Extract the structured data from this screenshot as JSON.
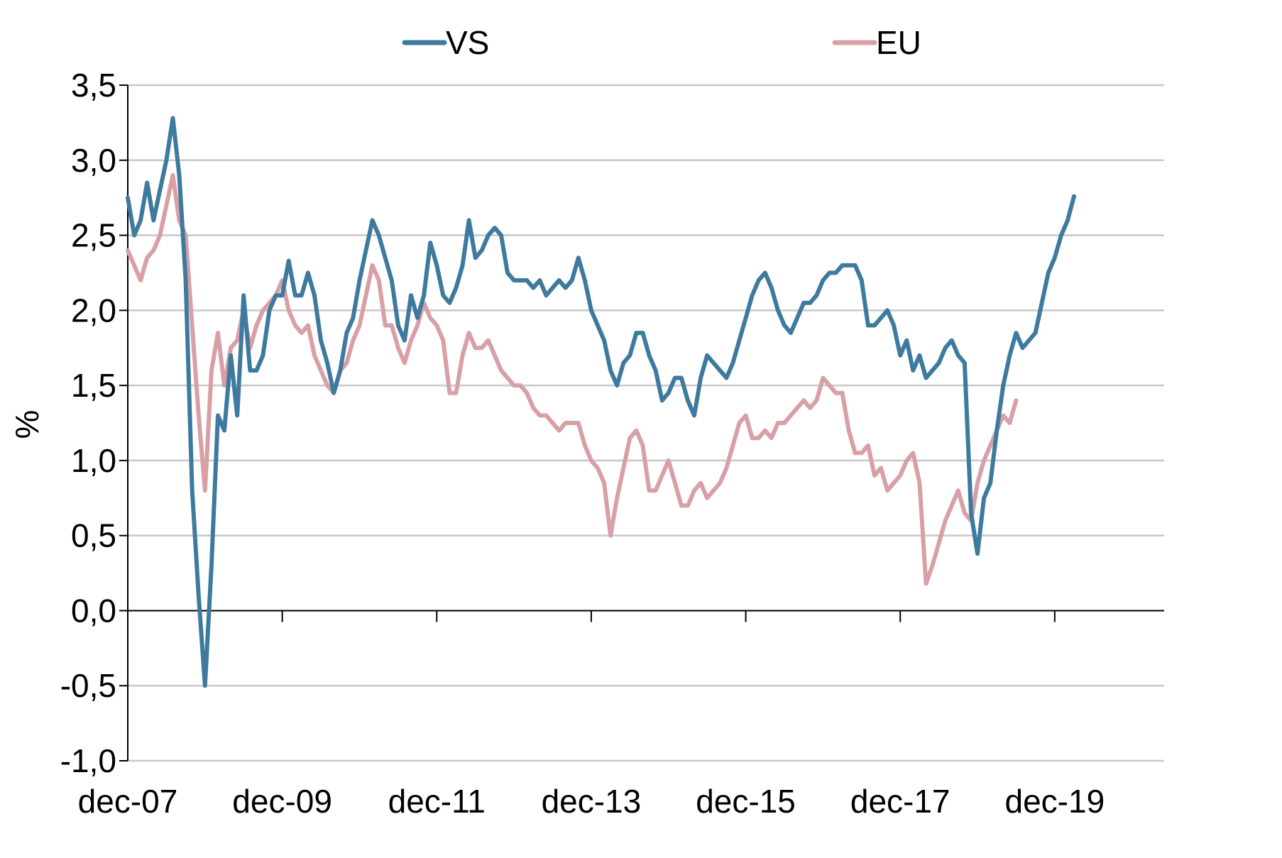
{
  "chart_data": {
    "type": "line",
    "title": "",
    "xlabel": "",
    "ylabel": "%",
    "ylim": [
      -1.0,
      3.5
    ],
    "xlim": [
      "2007-12",
      "2021-05"
    ],
    "grid": true,
    "legend": "top-center",
    "y_ticks": [
      "3,5",
      "3,0",
      "2,5",
      "2,0",
      "1,5",
      "1,0",
      "0,5",
      "0,0",
      "-0,5",
      "-1,0"
    ],
    "y_tick_values": [
      3.5,
      3.0,
      2.5,
      2.0,
      1.5,
      1.0,
      0.5,
      0.0,
      -0.5,
      -1.0
    ],
    "x_ticks": [
      "dec-07",
      "dec-09",
      "dec-11",
      "dec-13",
      "dec-15",
      "dec-17",
      "dec-19"
    ],
    "x_tick_values": [
      "2007-12",
      "2009-12",
      "2011-12",
      "2013-12",
      "2015-12",
      "2017-12",
      "2019-12"
    ],
    "series": [
      {
        "name": "VS",
        "color": "#3d7a9e",
        "points": [
          [
            "2007-12",
            2.75
          ],
          [
            "2008-01",
            2.5
          ],
          [
            "2008-02",
            2.6
          ],
          [
            "2008-03",
            2.85
          ],
          [
            "2008-04",
            2.6
          ],
          [
            "2008-05",
            2.8
          ],
          [
            "2008-06",
            3.0
          ],
          [
            "2008-07",
            3.28
          ],
          [
            "2008-08",
            2.9
          ],
          [
            "2008-09",
            2.2
          ],
          [
            "2008-10",
            0.8
          ],
          [
            "2008-11",
            0.1
          ],
          [
            "2008-12",
            -0.5
          ],
          [
            "2009-01",
            0.3
          ],
          [
            "2009-02",
            1.3
          ],
          [
            "2009-03",
            1.2
          ],
          [
            "2009-04",
            1.7
          ],
          [
            "2009-05",
            1.3
          ],
          [
            "2009-06",
            2.1
          ],
          [
            "2009-07",
            1.6
          ],
          [
            "2009-08",
            1.6
          ],
          [
            "2009-09",
            1.7
          ],
          [
            "2009-10",
            2.0
          ],
          [
            "2009-11",
            2.1
          ],
          [
            "2009-12",
            2.1
          ],
          [
            "2010-01",
            2.33
          ],
          [
            "2010-02",
            2.1
          ],
          [
            "2010-03",
            2.1
          ],
          [
            "2010-04",
            2.25
          ],
          [
            "2010-05",
            2.1
          ],
          [
            "2010-06",
            1.8
          ],
          [
            "2010-07",
            1.65
          ],
          [
            "2010-08",
            1.45
          ],
          [
            "2010-09",
            1.6
          ],
          [
            "2010-10",
            1.85
          ],
          [
            "2010-11",
            1.95
          ],
          [
            "2010-12",
            2.2
          ],
          [
            "2011-01",
            2.4
          ],
          [
            "2011-02",
            2.6
          ],
          [
            "2011-03",
            2.5
          ],
          [
            "2011-04",
            2.35
          ],
          [
            "2011-05",
            2.2
          ],
          [
            "2011-06",
            1.9
          ],
          [
            "2011-07",
            1.8
          ],
          [
            "2011-08",
            2.1
          ],
          [
            "2011-09",
            1.95
          ],
          [
            "2011-10",
            2.1
          ],
          [
            "2011-11",
            2.45
          ],
          [
            "2011-12",
            2.3
          ],
          [
            "2012-01",
            2.1
          ],
          [
            "2012-02",
            2.05
          ],
          [
            "2012-03",
            2.15
          ],
          [
            "2012-04",
            2.3
          ],
          [
            "2012-05",
            2.6
          ],
          [
            "2012-06",
            2.35
          ],
          [
            "2012-07",
            2.4
          ],
          [
            "2012-08",
            2.5
          ],
          [
            "2012-09",
            2.55
          ],
          [
            "2012-10",
            2.5
          ],
          [
            "2012-11",
            2.25
          ],
          [
            "2012-12",
            2.2
          ],
          [
            "2013-01",
            2.2
          ],
          [
            "2013-02",
            2.2
          ],
          [
            "2013-03",
            2.15
          ],
          [
            "2013-04",
            2.2
          ],
          [
            "2013-05",
            2.1
          ],
          [
            "2013-06",
            2.15
          ],
          [
            "2013-07",
            2.2
          ],
          [
            "2013-08",
            2.15
          ],
          [
            "2013-09",
            2.2
          ],
          [
            "2013-10",
            2.35
          ],
          [
            "2013-11",
            2.2
          ],
          [
            "2013-12",
            2.0
          ],
          [
            "2014-01",
            1.9
          ],
          [
            "2014-02",
            1.8
          ],
          [
            "2014-03",
            1.6
          ],
          [
            "2014-04",
            1.5
          ],
          [
            "2014-05",
            1.65
          ],
          [
            "2014-06",
            1.7
          ],
          [
            "2014-07",
            1.85
          ],
          [
            "2014-08",
            1.85
          ],
          [
            "2014-09",
            1.7
          ],
          [
            "2014-10",
            1.6
          ],
          [
            "2014-11",
            1.4
          ],
          [
            "2014-12",
            1.45
          ],
          [
            "2015-01",
            1.55
          ],
          [
            "2015-02",
            1.55
          ],
          [
            "2015-03",
            1.4
          ],
          [
            "2015-04",
            1.3
          ],
          [
            "2015-05",
            1.55
          ],
          [
            "2015-06",
            1.7
          ],
          [
            "2015-07",
            1.65
          ],
          [
            "2015-08",
            1.6
          ],
          [
            "2015-09",
            1.55
          ],
          [
            "2015-10",
            1.65
          ],
          [
            "2015-11",
            1.8
          ],
          [
            "2015-12",
            1.95
          ],
          [
            "2016-01",
            2.1
          ],
          [
            "2016-02",
            2.2
          ],
          [
            "2016-03",
            2.25
          ],
          [
            "2016-04",
            2.15
          ],
          [
            "2016-05",
            2.0
          ],
          [
            "2016-06",
            1.9
          ],
          [
            "2016-07",
            1.85
          ],
          [
            "2016-08",
            1.95
          ],
          [
            "2016-09",
            2.05
          ],
          [
            "2016-10",
            2.05
          ],
          [
            "2016-11",
            2.1
          ],
          [
            "2016-12",
            2.2
          ],
          [
            "2017-01",
            2.25
          ],
          [
            "2017-02",
            2.25
          ],
          [
            "2017-03",
            2.3
          ],
          [
            "2017-04",
            2.3
          ],
          [
            "2017-05",
            2.3
          ],
          [
            "2017-06",
            2.2
          ],
          [
            "2017-07",
            1.9
          ],
          [
            "2017-08",
            1.9
          ],
          [
            "2017-09",
            1.95
          ],
          [
            "2017-10",
            2.0
          ],
          [
            "2017-11",
            1.9
          ],
          [
            "2017-12",
            1.7
          ],
          [
            "2018-01",
            1.8
          ],
          [
            "2018-02",
            1.6
          ],
          [
            "2018-03",
            1.7
          ],
          [
            "2018-04",
            1.55
          ],
          [
            "2018-05",
            1.6
          ],
          [
            "2018-06",
            1.65
          ],
          [
            "2018-07",
            1.75
          ],
          [
            "2018-08",
            1.8
          ],
          [
            "2018-09",
            1.7
          ],
          [
            "2018-10",
            1.65
          ],
          [
            "2018-11",
            0.65
          ],
          [
            "2018-12",
            0.38
          ],
          [
            "2019-01",
            0.75
          ],
          [
            "2019-02",
            0.85
          ],
          [
            "2019-03",
            1.2
          ],
          [
            "2019-04",
            1.5
          ],
          [
            "2019-05",
            1.7
          ],
          [
            "2019-06",
            1.85
          ],
          [
            "2019-07",
            1.75
          ],
          [
            "2019-08",
            1.8
          ],
          [
            "2019-09",
            1.85
          ],
          [
            "2019-10",
            2.05
          ],
          [
            "2019-11",
            2.25
          ],
          [
            "2019-12",
            2.35
          ],
          [
            "2020-01",
            2.5
          ],
          [
            "2020-02",
            2.6
          ],
          [
            "2020-03",
            2.76
          ]
        ]
      },
      {
        "name": "EU",
        "color": "#d8a0a6",
        "points": [
          [
            "2007-12",
            2.4
          ],
          [
            "2008-01",
            2.3
          ],
          [
            "2008-02",
            2.2
          ],
          [
            "2008-03",
            2.35
          ],
          [
            "2008-04",
            2.4
          ],
          [
            "2008-05",
            2.5
          ],
          [
            "2008-06",
            2.7
          ],
          [
            "2008-07",
            2.9
          ],
          [
            "2008-08",
            2.6
          ],
          [
            "2008-09",
            2.5
          ],
          [
            "2008-10",
            1.9
          ],
          [
            "2008-11",
            1.3
          ],
          [
            "2008-12",
            0.8
          ],
          [
            "2009-01",
            1.6
          ],
          [
            "2009-02",
            1.85
          ],
          [
            "2009-03",
            1.5
          ],
          [
            "2009-04",
            1.75
          ],
          [
            "2009-05",
            1.8
          ],
          [
            "2009-06",
            2.0
          ],
          [
            "2009-07",
            1.75
          ],
          [
            "2009-08",
            1.9
          ],
          [
            "2009-09",
            2.0
          ],
          [
            "2009-10",
            2.05
          ],
          [
            "2009-11",
            2.1
          ],
          [
            "2009-12",
            2.2
          ],
          [
            "2010-01",
            2.0
          ],
          [
            "2010-02",
            1.9
          ],
          [
            "2010-03",
            1.85
          ],
          [
            "2010-04",
            1.9
          ],
          [
            "2010-05",
            1.7
          ],
          [
            "2010-06",
            1.6
          ],
          [
            "2010-07",
            1.5
          ],
          [
            "2010-08",
            1.45
          ],
          [
            "2010-09",
            1.6
          ],
          [
            "2010-10",
            1.65
          ],
          [
            "2010-11",
            1.8
          ],
          [
            "2010-12",
            1.9
          ],
          [
            "2011-01",
            2.1
          ],
          [
            "2011-02",
            2.3
          ],
          [
            "2011-03",
            2.2
          ],
          [
            "2011-04",
            1.9
          ],
          [
            "2011-05",
            1.9
          ],
          [
            "2011-06",
            1.75
          ],
          [
            "2011-07",
            1.65
          ],
          [
            "2011-08",
            1.8
          ],
          [
            "2011-09",
            1.9
          ],
          [
            "2011-10",
            2.05
          ],
          [
            "2011-11",
            1.95
          ],
          [
            "2011-12",
            1.9
          ],
          [
            "2012-01",
            1.8
          ],
          [
            "2012-02",
            1.45
          ],
          [
            "2012-03",
            1.45
          ],
          [
            "2012-04",
            1.7
          ],
          [
            "2012-05",
            1.85
          ],
          [
            "2012-06",
            1.75
          ],
          [
            "2012-07",
            1.75
          ],
          [
            "2012-08",
            1.8
          ],
          [
            "2012-09",
            1.7
          ],
          [
            "2012-10",
            1.6
          ],
          [
            "2012-11",
            1.55
          ],
          [
            "2012-12",
            1.5
          ],
          [
            "2013-01",
            1.5
          ],
          [
            "2013-02",
            1.45
          ],
          [
            "2013-03",
            1.35
          ],
          [
            "2013-04",
            1.3
          ],
          [
            "2013-05",
            1.3
          ],
          [
            "2013-06",
            1.25
          ],
          [
            "2013-07",
            1.2
          ],
          [
            "2013-08",
            1.25
          ],
          [
            "2013-09",
            1.25
          ],
          [
            "2013-10",
            1.25
          ],
          [
            "2013-11",
            1.1
          ],
          [
            "2013-12",
            1.0
          ],
          [
            "2014-01",
            0.95
          ],
          [
            "2014-02",
            0.85
          ],
          [
            "2014-03",
            0.5
          ],
          [
            "2014-04",
            0.75
          ],
          [
            "2014-05",
            0.95
          ],
          [
            "2014-06",
            1.15
          ],
          [
            "2014-07",
            1.2
          ],
          [
            "2014-08",
            1.1
          ],
          [
            "2014-09",
            0.8
          ],
          [
            "2014-10",
            0.8
          ],
          [
            "2014-11",
            0.9
          ],
          [
            "2014-12",
            1.0
          ],
          [
            "2015-01",
            0.85
          ],
          [
            "2015-02",
            0.7
          ],
          [
            "2015-03",
            0.7
          ],
          [
            "2015-04",
            0.8
          ],
          [
            "2015-05",
            0.85
          ],
          [
            "2015-06",
            0.75
          ],
          [
            "2015-07",
            0.8
          ],
          [
            "2015-08",
            0.85
          ],
          [
            "2015-09",
            0.95
          ],
          [
            "2015-10",
            1.1
          ],
          [
            "2015-11",
            1.25
          ],
          [
            "2015-12",
            1.3
          ],
          [
            "2016-01",
            1.15
          ],
          [
            "2016-02",
            1.15
          ],
          [
            "2016-03",
            1.2
          ],
          [
            "2016-04",
            1.15
          ],
          [
            "2016-05",
            1.25
          ],
          [
            "2016-06",
            1.25
          ],
          [
            "2016-07",
            1.3
          ],
          [
            "2016-08",
            1.35
          ],
          [
            "2016-09",
            1.4
          ],
          [
            "2016-10",
            1.35
          ],
          [
            "2016-11",
            1.4
          ],
          [
            "2016-12",
            1.55
          ],
          [
            "2017-01",
            1.5
          ],
          [
            "2017-02",
            1.45
          ],
          [
            "2017-03",
            1.45
          ],
          [
            "2017-04",
            1.2
          ],
          [
            "2017-05",
            1.05
          ],
          [
            "2017-06",
            1.05
          ],
          [
            "2017-07",
            1.1
          ],
          [
            "2017-08",
            0.9
          ],
          [
            "2017-09",
            0.95
          ],
          [
            "2017-10",
            0.8
          ],
          [
            "2017-11",
            0.85
          ],
          [
            "2017-12",
            0.9
          ],
          [
            "2018-01",
            1.0
          ],
          [
            "2018-02",
            1.05
          ],
          [
            "2018-03",
            0.85
          ],
          [
            "2018-04",
            0.18
          ],
          [
            "2018-05",
            0.3
          ],
          [
            "2018-06",
            0.45
          ],
          [
            "2018-07",
            0.6
          ],
          [
            "2018-08",
            0.7
          ],
          [
            "2018-09",
            0.8
          ],
          [
            "2018-10",
            0.65
          ],
          [
            "2018-11",
            0.6
          ],
          [
            "2018-12",
            0.85
          ],
          [
            "2019-01",
            1.0
          ],
          [
            "2019-02",
            1.1
          ],
          [
            "2019-03",
            1.2
          ],
          [
            "2019-04",
            1.3
          ],
          [
            "2019-05",
            1.25
          ],
          [
            "2019-06",
            1.4
          ]
        ]
      }
    ]
  }
}
